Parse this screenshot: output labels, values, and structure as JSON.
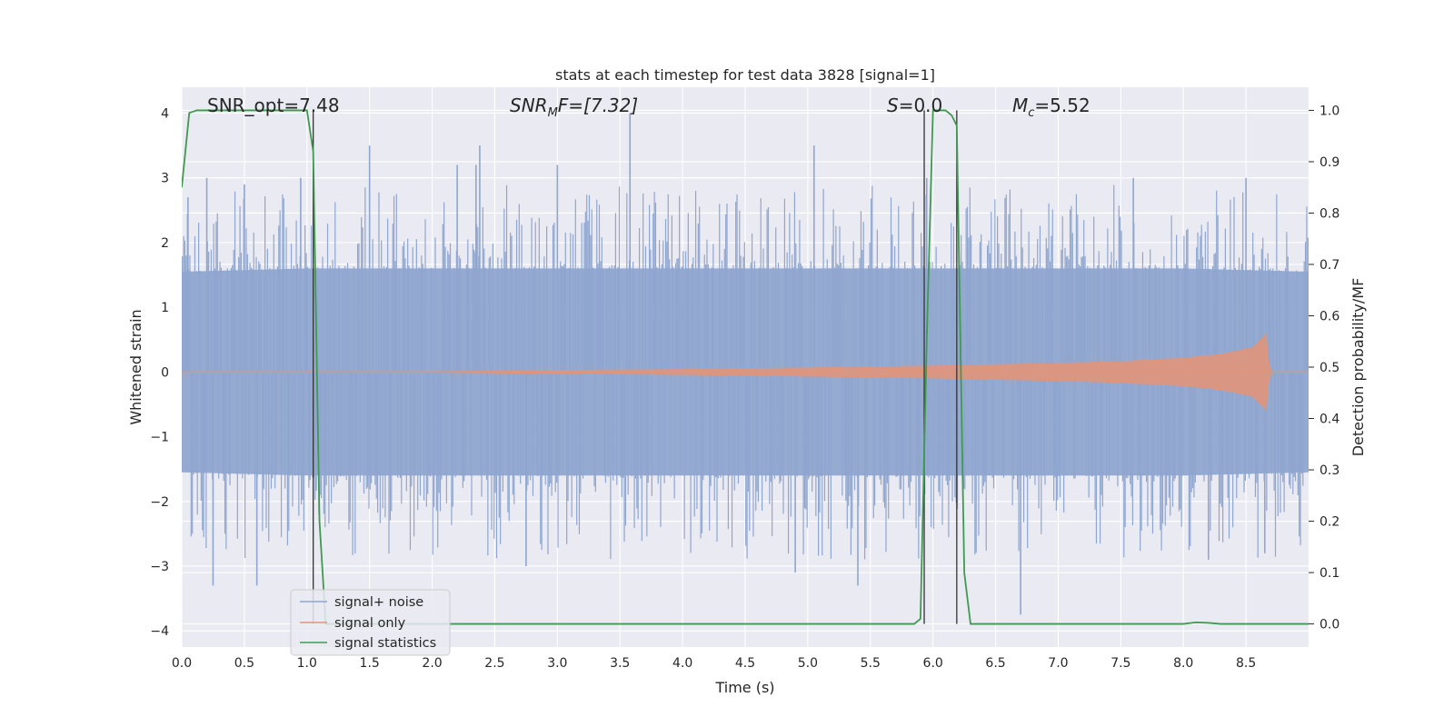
{
  "chart_data": {
    "type": "line",
    "title": "stats at each timestep for test data 3828 [signal=1]",
    "xlabel": "Time (s)",
    "ylabel_left": "Whitened strain",
    "ylabel_right": "Detection probability/MF",
    "xlim": [
      0.0,
      9.0
    ],
    "ylim_left": [
      -4.25,
      4.4
    ],
    "ylim_right": [
      -0.045,
      1.045
    ],
    "x_ticks": [
      "0.0",
      "0.5",
      "1.0",
      "1.5",
      "2.0",
      "2.5",
      "3.0",
      "3.5",
      "4.0",
      "4.5",
      "5.0",
      "5.5",
      "6.0",
      "6.5",
      "7.0",
      "7.5",
      "8.0",
      "8.5"
    ],
    "y_left_ticks": [
      "4",
      "3",
      "2",
      "1",
      "0",
      "−1",
      "−2",
      "−3",
      "−4"
    ],
    "y_right_ticks": [
      "1.0",
      "0.9",
      "0.8",
      "0.7",
      "0.6",
      "0.5",
      "0.4",
      "0.3",
      "0.2",
      "0.1",
      "0.0"
    ],
    "grid": true,
    "legend_position": "lower-left",
    "annotations": {
      "snr_opt": "SNR_opt=7.48",
      "snr_mf_main": "SNR",
      "snr_mf_sub": "M",
      "snr_mf_rest": "F=[7.32]",
      "s_italic": "S",
      "s_value": "=0.0",
      "mc_main": "M",
      "mc_sub": "c",
      "mc_value": "=5.52"
    },
    "markers_x": [
      1.05,
      5.93,
      6.19
    ],
    "series": [
      {
        "name": "signal+ noise",
        "color": "#8fa6cf",
        "envelope_mean_abs": [
          [
            0.0,
            1.55
          ],
          [
            1.0,
            1.6
          ],
          [
            2.0,
            1.6
          ],
          [
            3.0,
            1.6
          ],
          [
            4.0,
            1.6
          ],
          [
            5.0,
            1.6
          ],
          [
            6.0,
            1.6
          ],
          [
            7.0,
            1.6
          ],
          [
            8.0,
            1.6
          ],
          [
            9.0,
            1.55
          ]
        ],
        "peaks": [
          [
            0.05,
            2.7
          ],
          [
            0.2,
            3.0
          ],
          [
            0.25,
            -3.3
          ],
          [
            0.5,
            2.9
          ],
          [
            0.6,
            -3.3
          ],
          [
            0.95,
            3.0
          ],
          [
            1.5,
            3.5
          ],
          [
            2.2,
            3.2
          ],
          [
            2.35,
            3.2
          ],
          [
            2.38,
            3.5
          ],
          [
            2.75,
            -3.0
          ],
          [
            3.0,
            3.2
          ],
          [
            3.58,
            4.0
          ],
          [
            4.9,
            -3.1
          ],
          [
            5.05,
            3.5
          ],
          [
            5.4,
            -3.3
          ],
          [
            5.95,
            3.0
          ],
          [
            6.7,
            -3.75
          ],
          [
            7.6,
            3.0
          ],
          [
            8.5,
            3.0
          ],
          [
            8.2,
            -2.9
          ],
          [
            8.65,
            -2.8
          ]
        ]
      },
      {
        "name": "signal only",
        "color": "#e0957a",
        "envelope_amp": [
          [
            0.0,
            0.005
          ],
          [
            2.0,
            0.01
          ],
          [
            3.0,
            0.03
          ],
          [
            4.0,
            0.045
          ],
          [
            5.0,
            0.07
          ],
          [
            6.0,
            0.1
          ],
          [
            7.0,
            0.14
          ],
          [
            7.5,
            0.17
          ],
          [
            8.0,
            0.22
          ],
          [
            8.3,
            0.28
          ],
          [
            8.55,
            0.38
          ],
          [
            8.64,
            0.55
          ],
          [
            8.67,
            0.62
          ],
          [
            8.69,
            0.0
          ],
          [
            9.0,
            0.0
          ]
        ]
      },
      {
        "name": "signal statistics",
        "color": "#3f9a4f",
        "x": [
          0.0,
          0.06,
          0.12,
          0.5,
          1.0,
          1.05,
          1.1,
          1.15,
          5.85,
          5.9,
          5.95,
          6.0,
          6.1,
          6.15,
          6.19,
          6.25,
          6.3,
          8.0,
          8.1,
          8.2,
          8.3,
          9.0
        ],
        "y": [
          0.85,
          0.995,
          1.0,
          1.0,
          1.0,
          0.92,
          0.2,
          0.0,
          0.0,
          0.01,
          0.55,
          1.0,
          1.0,
          0.99,
          0.97,
          0.1,
          0.0,
          0.0,
          0.003,
          0.002,
          0.0,
          0.0
        ]
      }
    ]
  }
}
